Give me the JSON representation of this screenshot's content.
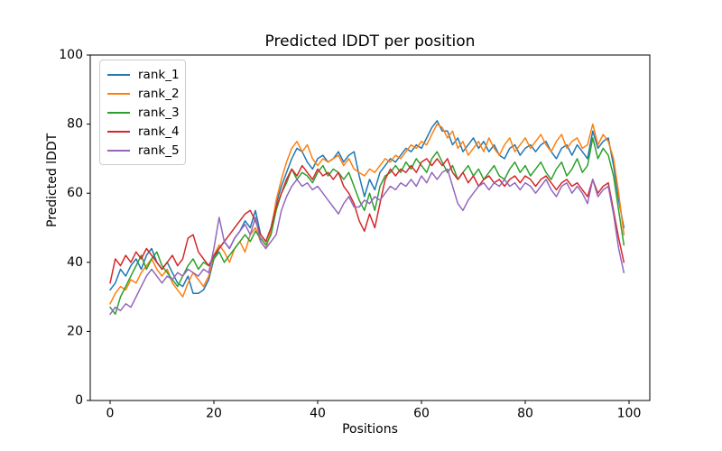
{
  "figure": {
    "background_color": "#ffffff",
    "frame_color": "#000000",
    "text_color": "#000000"
  },
  "chart_data": {
    "type": "line",
    "title": "Predicted lDDT per position",
    "xlabel": "Positions",
    "ylabel": "Predicted lDDT",
    "xlim": [
      -4,
      104
    ],
    "ylim": [
      0,
      100
    ],
    "xticks": [
      0,
      20,
      40,
      60,
      80,
      100
    ],
    "yticks": [
      0,
      20,
      40,
      60,
      80,
      100
    ],
    "grid": false,
    "legend_position": "upper-left",
    "x_description": "positions 0-99, one data point per integer index",
    "series": [
      {
        "name": "rank_1",
        "color": "#1f77b4",
        "values": [
          32,
          34,
          38,
          36,
          39,
          41,
          38,
          42,
          44,
          40,
          38,
          40,
          37,
          34,
          33,
          36,
          31,
          31,
          32,
          35,
          41,
          44,
          46,
          44,
          47,
          49,
          52,
          50,
          55,
          48,
          46,
          50,
          57,
          62,
          66,
          70,
          73,
          72,
          69,
          67,
          70,
          71,
          69,
          70,
          72,
          69,
          71,
          72,
          65,
          59,
          64,
          61,
          66,
          68,
          70,
          69,
          71,
          73,
          72,
          74,
          73,
          76,
          79,
          81,
          78,
          78,
          74,
          76,
          72,
          74,
          76,
          73,
          75,
          72,
          74,
          71,
          70,
          73,
          74,
          71,
          73,
          74,
          72,
          74,
          75,
          72,
          70,
          73,
          74,
          71,
          74,
          72,
          70,
          78,
          73,
          75,
          76,
          68,
          58,
          50
        ]
      },
      {
        "name": "rank_2",
        "color": "#ff7f0e",
        "values": [
          28,
          31,
          33,
          32,
          35,
          34,
          37,
          39,
          41,
          38,
          36,
          38,
          34,
          32,
          30,
          34,
          37,
          35,
          33,
          36,
          42,
          45,
          43,
          40,
          44,
          46,
          43,
          48,
          50,
          46,
          44,
          49,
          58,
          64,
          69,
          73,
          75,
          72,
          74,
          70,
          68,
          70,
          69,
          70,
          71,
          68,
          70,
          67,
          66,
          65,
          67,
          66,
          68,
          70,
          69,
          71,
          70,
          72,
          74,
          73,
          75,
          74,
          77,
          80,
          79,
          76,
          78,
          73,
          75,
          71,
          73,
          75,
          72,
          76,
          73,
          71,
          74,
          76,
          72,
          74,
          76,
          73,
          75,
          77,
          74,
          72,
          75,
          77,
          73,
          75,
          76,
          73,
          74,
          80,
          74,
          77,
          75,
          70,
          60,
          48
        ]
      },
      {
        "name": "rank_3",
        "color": "#2ca02c",
        "values": [
          27,
          25,
          30,
          33,
          36,
          39,
          42,
          38,
          41,
          43,
          39,
          37,
          35,
          33,
          36,
          39,
          41,
          38,
          40,
          39,
          41,
          43,
          40,
          42,
          44,
          46,
          48,
          46,
          49,
          47,
          45,
          48,
          55,
          60,
          63,
          67,
          64,
          66,
          65,
          63,
          66,
          68,
          65,
          67,
          66,
          64,
          66,
          62,
          58,
          55,
          60,
          55,
          62,
          65,
          66,
          68,
          66,
          69,
          67,
          70,
          68,
          66,
          70,
          72,
          69,
          66,
          68,
          64,
          66,
          68,
          65,
          67,
          64,
          66,
          68,
          65,
          64,
          67,
          69,
          66,
          68,
          65,
          67,
          69,
          66,
          64,
          67,
          69,
          65,
          67,
          70,
          66,
          68,
          76,
          70,
          73,
          71,
          65,
          55,
          45
        ]
      },
      {
        "name": "rank_4",
        "color": "#d62728",
        "values": [
          34,
          41,
          39,
          42,
          40,
          43,
          41,
          44,
          42,
          40,
          38,
          40,
          42,
          39,
          41,
          47,
          48,
          43,
          41,
          39,
          42,
          44,
          46,
          48,
          50,
          52,
          54,
          55,
          52,
          48,
          46,
          50,
          56,
          60,
          64,
          67,
          65,
          68,
          66,
          64,
          67,
          65,
          66,
          64,
          66,
          62,
          60,
          57,
          52,
          49,
          54,
          50,
          57,
          64,
          67,
          65,
          67,
          66,
          68,
          66,
          69,
          70,
          68,
          70,
          68,
          70,
          66,
          64,
          66,
          63,
          65,
          62,
          64,
          65,
          63,
          64,
          62,
          64,
          65,
          63,
          65,
          64,
          62,
          64,
          65,
          63,
          61,
          63,
          64,
          62,
          63,
          61,
          59,
          64,
          60,
          62,
          63,
          55,
          47,
          40
        ]
      },
      {
        "name": "rank_5",
        "color": "#9467bd",
        "values": [
          25,
          27,
          26,
          28,
          27,
          30,
          33,
          36,
          38,
          36,
          34,
          36,
          35,
          37,
          36,
          38,
          37,
          36,
          38,
          37,
          44,
          53,
          46,
          44,
          47,
          49,
          51,
          48,
          53,
          46,
          44,
          46,
          48,
          55,
          59,
          62,
          64,
          62,
          63,
          61,
          62,
          60,
          58,
          56,
          54,
          57,
          59,
          56,
          56,
          58,
          57,
          59,
          58,
          60,
          62,
          61,
          63,
          62,
          64,
          62,
          65,
          63,
          66,
          64,
          66,
          67,
          62,
          57,
          55,
          58,
          60,
          62,
          63,
          61,
          63,
          62,
          64,
          62,
          63,
          61,
          63,
          62,
          60,
          62,
          64,
          61,
          59,
          62,
          63,
          60,
          62,
          60,
          57,
          64,
          59,
          61,
          62,
          54,
          44,
          37
        ]
      }
    ]
  }
}
